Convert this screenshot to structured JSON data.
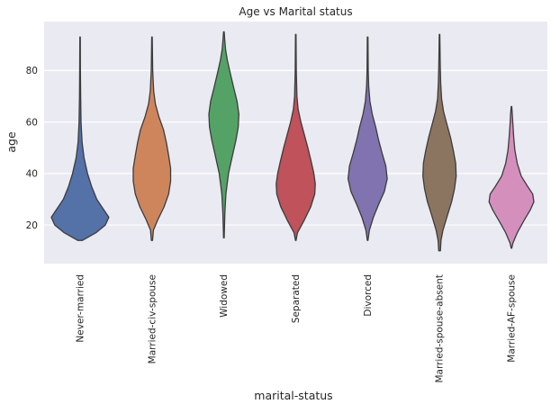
{
  "chart_data": {
    "type": "violin",
    "title": "Age vs Marital status",
    "xlabel": "marital-status",
    "ylabel": "age",
    "ylim": [
      5,
      99
    ],
    "yticks": [
      20,
      40,
      60,
      80
    ],
    "grid": true,
    "categories": [
      "Never-married",
      "Married-civ-spouse",
      "Widowed",
      "Separated",
      "Divorced",
      "Married-spouse-absent",
      "Married-AF-spouse"
    ],
    "colors": [
      "#5471a8",
      "#cf855b",
      "#55a266",
      "#bf525a",
      "#8173b0",
      "#8c7560",
      "#d48fbd"
    ],
    "violins": [
      {
        "min": 14,
        "max": 93,
        "profile": [
          [
            14,
            0.08
          ],
          [
            17,
            0.55
          ],
          [
            20,
            0.88
          ],
          [
            23,
            1.0
          ],
          [
            26,
            0.82
          ],
          [
            30,
            0.58
          ],
          [
            35,
            0.4
          ],
          [
            40,
            0.26
          ],
          [
            46,
            0.14
          ],
          [
            52,
            0.07
          ],
          [
            60,
            0.035
          ],
          [
            70,
            0.02
          ],
          [
            80,
            0.012
          ],
          [
            93,
            0.008
          ]
        ]
      },
      {
        "min": 14,
        "max": 93,
        "profile": [
          [
            14,
            0.02
          ],
          [
            18,
            0.05
          ],
          [
            22,
            0.2
          ],
          [
            27,
            0.42
          ],
          [
            32,
            0.58
          ],
          [
            37,
            0.65
          ],
          [
            42,
            0.65
          ],
          [
            47,
            0.58
          ],
          [
            52,
            0.5
          ],
          [
            57,
            0.4
          ],
          [
            62,
            0.24
          ],
          [
            67,
            0.12
          ],
          [
            72,
            0.06
          ],
          [
            80,
            0.025
          ],
          [
            93,
            0.01
          ]
        ]
      },
      {
        "min": 15,
        "max": 95,
        "profile": [
          [
            15,
            0.01
          ],
          [
            25,
            0.035
          ],
          [
            32,
            0.07
          ],
          [
            40,
            0.16
          ],
          [
            47,
            0.3
          ],
          [
            53,
            0.42
          ],
          [
            58,
            0.5
          ],
          [
            63,
            0.52
          ],
          [
            68,
            0.46
          ],
          [
            73,
            0.35
          ],
          [
            79,
            0.22
          ],
          [
            84,
            0.12
          ],
          [
            88,
            0.06
          ],
          [
            92,
            0.03
          ],
          [
            95,
            0.01
          ]
        ]
      },
      {
        "min": 14,
        "max": 94,
        "profile": [
          [
            14,
            0.01
          ],
          [
            17,
            0.06
          ],
          [
            22,
            0.3
          ],
          [
            27,
            0.52
          ],
          [
            32,
            0.66
          ],
          [
            36,
            0.68
          ],
          [
            40,
            0.63
          ],
          [
            45,
            0.53
          ],
          [
            50,
            0.42
          ],
          [
            55,
            0.3
          ],
          [
            60,
            0.18
          ],
          [
            65,
            0.08
          ],
          [
            70,
            0.04
          ],
          [
            80,
            0.02
          ],
          [
            94,
            0.01
          ]
        ]
      },
      {
        "min": 14,
        "max": 93,
        "profile": [
          [
            14,
            0.01
          ],
          [
            18,
            0.06
          ],
          [
            23,
            0.2
          ],
          [
            28,
            0.38
          ],
          [
            33,
            0.58
          ],
          [
            38,
            0.68
          ],
          [
            43,
            0.63
          ],
          [
            48,
            0.5
          ],
          [
            53,
            0.38
          ],
          [
            58,
            0.28
          ],
          [
            63,
            0.16
          ],
          [
            68,
            0.08
          ],
          [
            74,
            0.035
          ],
          [
            80,
            0.02
          ],
          [
            93,
            0.01
          ]
        ]
      },
      {
        "min": 10,
        "max": 94,
        "profile": [
          [
            10,
            0.03
          ],
          [
            14,
            0.05
          ],
          [
            18,
            0.12
          ],
          [
            24,
            0.28
          ],
          [
            29,
            0.42
          ],
          [
            34,
            0.52
          ],
          [
            39,
            0.58
          ],
          [
            44,
            0.56
          ],
          [
            49,
            0.48
          ],
          [
            54,
            0.38
          ],
          [
            59,
            0.26
          ],
          [
            64,
            0.14
          ],
          [
            69,
            0.07
          ],
          [
            75,
            0.04
          ],
          [
            82,
            0.025
          ],
          [
            94,
            0.01
          ]
        ]
      },
      {
        "min": 11,
        "max": 66,
        "profile": [
          [
            11,
            0.01
          ],
          [
            13,
            0.05
          ],
          [
            17,
            0.2
          ],
          [
            22,
            0.45
          ],
          [
            26,
            0.66
          ],
          [
            29,
            0.78
          ],
          [
            32,
            0.74
          ],
          [
            35,
            0.56
          ],
          [
            39,
            0.34
          ],
          [
            44,
            0.2
          ],
          [
            49,
            0.12
          ],
          [
            54,
            0.08
          ],
          [
            59,
            0.05
          ],
          [
            63,
            0.03
          ],
          [
            66,
            0.01
          ]
        ]
      }
    ]
  }
}
